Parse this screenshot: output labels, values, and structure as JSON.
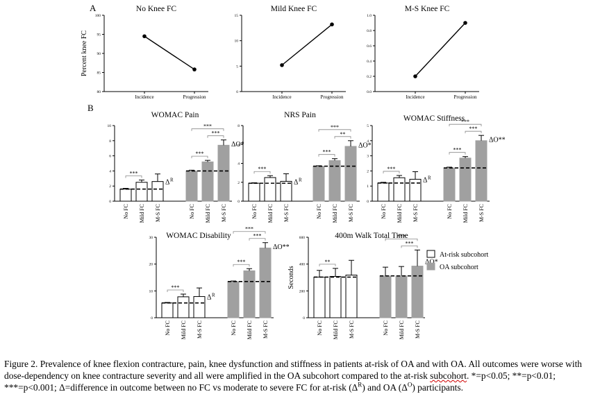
{
  "panel_labels": {
    "a": "A",
    "b": "B"
  },
  "chart_data": [
    {
      "id": "a1",
      "type": "line",
      "title": "No Knee FC",
      "ylabel": "Percent knee FC",
      "categories": [
        "Incidence",
        "Progression"
      ],
      "values": [
        94.5,
        85.8
      ],
      "ylim": [
        80,
        100
      ],
      "yticks": [
        80,
        85,
        90,
        95,
        100
      ]
    },
    {
      "id": "a2",
      "type": "line",
      "title": "Mild Knee FC",
      "ylabel": "",
      "categories": [
        "Incidence",
        "Progression"
      ],
      "values": [
        5.2,
        13.2
      ],
      "ylim": [
        0,
        15
      ],
      "yticks": [
        0,
        5,
        10,
        15
      ]
    },
    {
      "id": "a3",
      "type": "line",
      "title": "M-S Knee FC",
      "ylabel": "",
      "categories": [
        "Incidence",
        "Progression"
      ],
      "values": [
        0.2,
        0.9
      ],
      "ylim": [
        0,
        1
      ],
      "yticks": [
        0.0,
        0.2,
        0.4,
        0.6,
        0.8,
        1.0
      ]
    },
    {
      "id": "b1",
      "type": "bar",
      "title": "WOMAC Pain",
      "ylabel": "",
      "categories": [
        "No FC",
        "Mild FC",
        "M-S FC",
        "No FC",
        "Mild FC",
        "M-S FC"
      ],
      "values": [
        1.6,
        2.5,
        2.6,
        4.0,
        5.2,
        7.4
      ],
      "errors": [
        0.1,
        0.3,
        1.0,
        0.1,
        0.2,
        0.7
      ],
      "ylim": [
        0,
        10
      ],
      "yticks": [
        0,
        2,
        4,
        6,
        8,
        10
      ],
      "sig": [
        {
          "from": 0,
          "to": 1,
          "label": "***"
        },
        {
          "from": 3,
          "to": 4,
          "label": "***"
        },
        {
          "from": 4,
          "to": 5,
          "label": "***"
        },
        {
          "from": 3,
          "to": 5,
          "label": "***"
        }
      ],
      "delta_r": "Δ",
      "delta_r_sup": "R",
      "delta_o": "ΔO*"
    },
    {
      "id": "b2",
      "type": "bar",
      "title": "NRS Pain",
      "ylabel": "",
      "categories": [
        "No FC",
        "Mild FC",
        "M-S FC",
        "No FC",
        "Mild FC",
        "M-S FC"
      ],
      "values": [
        1.9,
        2.5,
        2.1,
        3.7,
        4.3,
        5.8
      ],
      "errors": [
        0.05,
        0.2,
        0.8,
        0.05,
        0.2,
        0.6
      ],
      "ylim": [
        0,
        8
      ],
      "yticks": [
        0,
        2,
        4,
        6,
        8
      ],
      "sig": [
        {
          "from": 0,
          "to": 1,
          "label": "***"
        },
        {
          "from": 3,
          "to": 4,
          "label": "***"
        },
        {
          "from": 4,
          "to": 5,
          "label": "**"
        },
        {
          "from": 3,
          "to": 5,
          "label": "***"
        }
      ],
      "delta_r": "Δ",
      "delta_r_sup": "R",
      "delta_o": "ΔO*"
    },
    {
      "id": "b3",
      "type": "bar",
      "title": "WOMAC Stiffness",
      "ylabel": "",
      "categories": [
        "No FC",
        "Mild FC",
        "M-S FC",
        "No FC",
        "Mild FC",
        "M-S FC"
      ],
      "values": [
        1.2,
        1.55,
        1.45,
        2.2,
        2.85,
        4.0
      ],
      "errors": [
        0.05,
        0.15,
        0.5,
        0.05,
        0.1,
        0.35
      ],
      "ylim": [
        0,
        5
      ],
      "yticks": [
        0,
        1,
        2,
        3,
        4,
        5
      ],
      "sig": [
        {
          "from": 0,
          "to": 1,
          "label": "***"
        },
        {
          "from": 3,
          "to": 4,
          "label": "***"
        },
        {
          "from": 4,
          "to": 5,
          "label": "***"
        },
        {
          "from": 3,
          "to": 5,
          "label": "***"
        }
      ],
      "delta_r": "Δ",
      "delta_r_sup": "R",
      "delta_o": "ΔO**"
    },
    {
      "id": "b4",
      "type": "bar",
      "title": "WOMAC Disability",
      "ylabel": "",
      "categories": [
        "No FC",
        "Mild FC",
        "M-S FC",
        "No FC",
        "Mild FC",
        "M-S FC"
      ],
      "values": [
        5.5,
        7.8,
        7.9,
        13.5,
        17.5,
        26.0
      ],
      "errors": [
        0.2,
        1.0,
        3.2,
        0.2,
        0.8,
        2.0
      ],
      "ylim": [
        0,
        30
      ],
      "yticks": [
        0,
        10,
        20,
        30
      ],
      "sig": [
        {
          "from": 0,
          "to": 1,
          "label": "***"
        },
        {
          "from": 3,
          "to": 4,
          "label": "***"
        },
        {
          "from": 4,
          "to": 5,
          "label": "***"
        },
        {
          "from": 3,
          "to": 5,
          "label": "***"
        }
      ],
      "delta_r": "Δ",
      "delta_r_sup": "R",
      "delta_o": "ΔO**"
    },
    {
      "id": "b5",
      "type": "bar",
      "title": "400m Walk Total Time",
      "ylabel": "Seconds",
      "categories": [
        "No FC",
        "Mild FC",
        "M-S FC",
        "No FC",
        "Mild FC",
        "M-S FC"
      ],
      "values": [
        303,
        308,
        318,
        312,
        312,
        385
      ],
      "errors": [
        50,
        60,
        110,
        65,
        70,
        120
      ],
      "ylim": [
        0,
        600
      ],
      "yticks": [
        0,
        200,
        400,
        600
      ],
      "sig": [
        {
          "from": 0,
          "to": 1,
          "label": "**"
        },
        {
          "from": 4,
          "to": 5,
          "label": "***"
        },
        {
          "from": 3,
          "to": 5,
          "label": "***"
        }
      ],
      "delta_r": "",
      "delta_r_sup": "",
      "delta_o": "ΔO*"
    }
  ],
  "legend": {
    "at_risk": "At-risk subcohort",
    "oa": "OA subcohort"
  },
  "colors": {
    "oa_fill": "#a0a0a0",
    "at_risk_fill": "#ffffff",
    "stroke": "#000000"
  },
  "caption": {
    "part1": "Figure 2.   Prevalence of knee flexion contracture, pain, knee dysfunction and stiffness in patients at-risk of OA and with OA. All outcomes were worse with dose-dependency on knee contracture severity and all were amplified in the OA subcohort compared to the at-risk ",
    "subcohort_word": "subcohort",
    "part2": ". *=p<0.05; **=p<0.01; ***=p<0.001; Δ=difference in outcome between no FC vs moderate to severe FC for at-risk (Δ",
    "sup_r": "R",
    "part3": ") and OA (Δ",
    "sup_o": "O",
    "part4": ") participants."
  }
}
